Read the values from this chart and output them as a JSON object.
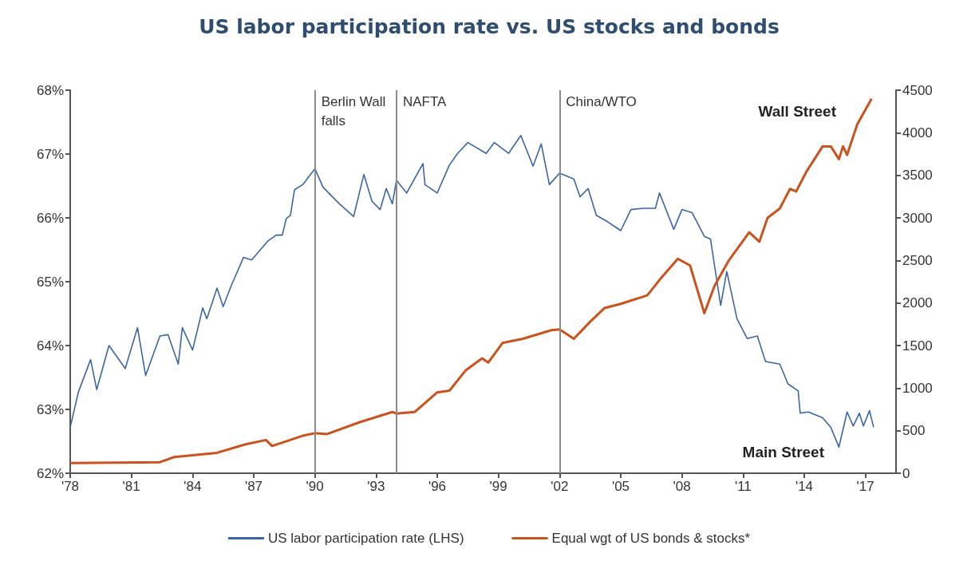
{
  "chart_data": {
    "type": "line",
    "title": "US labor participation rate vs. US stocks and bonds",
    "xlim": [
      1978,
      2018.5
    ],
    "xticks": [
      {
        "value": 1978,
        "label": "'78"
      },
      {
        "value": 1981,
        "label": "'81"
      },
      {
        "value": 1984,
        "label": "'84"
      },
      {
        "value": 1987,
        "label": "'87"
      },
      {
        "value": 1990,
        "label": "'90"
      },
      {
        "value": 1993,
        "label": "'93"
      },
      {
        "value": 1996,
        "label": "'96"
      },
      {
        "value": 1999,
        "label": "'99"
      },
      {
        "value": 2002,
        "label": "'02"
      },
      {
        "value": 2005,
        "label": "'05"
      },
      {
        "value": 2008,
        "label": "'08"
      },
      {
        "value": 2011,
        "label": "'11"
      },
      {
        "value": 2014,
        "label": "'14"
      },
      {
        "value": 2017,
        "label": "'17"
      }
    ],
    "ylim": [
      62,
      68
    ],
    "yticks": [
      {
        "value": 62,
        "label": "62%"
      },
      {
        "value": 63,
        "label": "63%"
      },
      {
        "value": 64,
        "label": "64%"
      },
      {
        "value": 65,
        "label": "65%"
      },
      {
        "value": 66,
        "label": "66%"
      },
      {
        "value": 67,
        "label": "67%"
      },
      {
        "value": 68,
        "label": "68%"
      }
    ],
    "y2lim": [
      0,
      4500
    ],
    "y2ticks": [
      0,
      500,
      1000,
      1500,
      2000,
      2500,
      3000,
      3500,
      4000,
      4500
    ],
    "grid": false,
    "legend": "bottom",
    "marker": "none",
    "line_style": "solid",
    "series": [
      {
        "name": "US labor participation rate (LHS)",
        "color": "#3a67a3",
        "x": [
          1978.0,
          1978.4,
          1979.0,
          1979.3,
          1979.9,
          1980.7,
          1981.3,
          1981.7,
          1982.4,
          1982.8,
          1983.3,
          1983.5,
          1984.0,
          1984.5,
          1984.7,
          1985.2,
          1985.5,
          1985.9,
          1986.5,
          1986.9,
          1987.7,
          1988.1,
          1988.4,
          1988.6,
          1988.8,
          1989.0,
          1989.4,
          1990.0,
          1990.4,
          1991.2,
          1991.9,
          1992.4,
          1992.8,
          1993.2,
          1993.5,
          1993.8,
          1994.0,
          1994.5,
          1995.3,
          1995.4,
          1996.0,
          1996.6,
          1997.0,
          1997.5,
          1998.4,
          1998.8,
          1999.5,
          2000.1,
          2000.7,
          2001.1,
          2001.5,
          2002.0,
          2002.7,
          2003.0,
          2003.4,
          2003.8,
          2004.3,
          2005.0,
          2005.5,
          2006.1,
          2006.7,
          2006.9,
          2007.6,
          2008.0,
          2008.5,
          2009.1,
          2009.4,
          2009.6,
          2009.9,
          2010.2,
          2010.7,
          2011.2,
          2011.7,
          2012.1,
          2012.8,
          2013.2,
          2013.7,
          2013.8,
          2014.2,
          2014.9,
          2015.3,
          2015.7,
          2016.1,
          2016.4,
          2016.7,
          2016.9,
          2017.2,
          2017.4
        ],
        "values": [
          62.72,
          63.27,
          63.78,
          63.31,
          64.0,
          63.64,
          64.28,
          63.53,
          64.15,
          64.17,
          63.71,
          64.28,
          63.93,
          64.59,
          64.42,
          64.9,
          64.61,
          64.94,
          65.38,
          65.34,
          65.64,
          65.73,
          65.73,
          65.99,
          66.04,
          66.44,
          66.52,
          66.77,
          66.48,
          66.22,
          66.02,
          66.68,
          66.26,
          66.13,
          66.46,
          66.22,
          66.59,
          66.39,
          66.85,
          66.52,
          66.39,
          66.83,
          67.01,
          67.18,
          67.01,
          67.18,
          67.01,
          67.29,
          66.81,
          67.16,
          66.52,
          66.7,
          66.61,
          66.33,
          66.46,
          66.04,
          65.95,
          65.8,
          66.13,
          66.15,
          66.15,
          66.39,
          65.82,
          66.13,
          66.08,
          65.71,
          65.67,
          65.25,
          64.63,
          65.16,
          64.42,
          64.11,
          64.15,
          63.75,
          63.71,
          63.4,
          63.29,
          62.94,
          62.96,
          62.87,
          62.72,
          62.41,
          62.96,
          62.74,
          62.94,
          62.74,
          62.98,
          62.72
        ]
      },
      {
        "name": "Equal wgt of US bonds & stocks*",
        "color": "#c9531f",
        "axis": "y2",
        "x": [
          1978.0,
          1982.4,
          1983.1,
          1985.2,
          1986.6,
          1987.6,
          1987.9,
          1989.4,
          1990.0,
          1990.6,
          1992.2,
          1993.8,
          1994.0,
          1994.9,
          1996.0,
          1996.6,
          1997.4,
          1998.2,
          1998.5,
          1999.2,
          2000.2,
          2001.6,
          2002.0,
          2002.7,
          2003.5,
          2004.2,
          2005.0,
          2006.3,
          2007.0,
          2007.8,
          2008.4,
          2009.1,
          2009.6,
          2010.3,
          2011.3,
          2011.8,
          2012.2,
          2012.8,
          2013.3,
          2013.6,
          2014.1,
          2014.9,
          2015.3,
          2015.7,
          2015.9,
          2016.1,
          2016.6,
          2017.3
        ],
        "values": [
          120,
          130,
          190,
          240,
          340,
          390,
          320,
          440,
          470,
          460,
          600,
          720,
          700,
          720,
          950,
          970,
          1210,
          1350,
          1300,
          1530,
          1580,
          1680,
          1690,
          1580,
          1780,
          1940,
          1990,
          2090,
          2300,
          2520,
          2440,
          1880,
          2200,
          2500,
          2830,
          2720,
          3000,
          3110,
          3340,
          3310,
          3540,
          3840,
          3840,
          3690,
          3840,
          3740,
          4100,
          4400
        ]
      }
    ],
    "ref_lines": [
      {
        "axis": "x",
        "value": 1990,
        "label": "Berlin Wall falls",
        "color": "#8c8c8c"
      },
      {
        "axis": "x",
        "value": 1994,
        "label": "NAFTA",
        "color": "#8c8c8c"
      },
      {
        "axis": "x",
        "value": 2002,
        "label": "China/WTO",
        "color": "#8c8c8c"
      }
    ],
    "annotations": [
      "Wall Street",
      "Main Street"
    ]
  }
}
